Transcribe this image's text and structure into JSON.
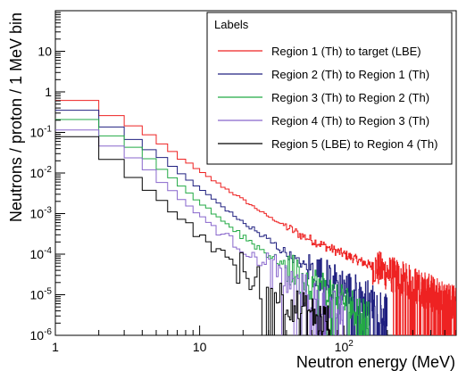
{
  "chart_data": {
    "type": "line",
    "title": "",
    "xlabel": "Neutron energy (MeV)",
    "ylabel": "Neutrons / proton / 1 MeV bin",
    "x_scale": "log",
    "y_scale": "log",
    "xlim": [
      1,
      600
    ],
    "ylim": [
      1e-06,
      100
    ],
    "x_ticks": [
      {
        "value": 1,
        "label": "1"
      },
      {
        "value": 10,
        "label": "10"
      },
      {
        "value": 100,
        "label": "10",
        "sup": "2"
      }
    ],
    "y_ticks": [
      {
        "value": 1e-06,
        "label": "10",
        "sup": "-6"
      },
      {
        "value": 1e-05,
        "label": "10",
        "sup": "-5"
      },
      {
        "value": 0.0001,
        "label": "10",
        "sup": "-4"
      },
      {
        "value": 0.001,
        "label": "10",
        "sup": "-3"
      },
      {
        "value": 0.01,
        "label": "10",
        "sup": "-2"
      },
      {
        "value": 0.1,
        "label": "10",
        "sup": "-1"
      },
      {
        "value": 1,
        "label": "1"
      },
      {
        "value": 10,
        "label": "10"
      }
    ],
    "grid": false,
    "legend_title": "Labels",
    "legend_position": "top-right",
    "series": [
      {
        "name": "Region 1 (Th) to target (LBE)",
        "color": "#ee2222",
        "points": [
          [
            1,
            1.15
          ],
          [
            2,
            0.38
          ],
          [
            3,
            0.2
          ],
          [
            5,
            0.065
          ],
          [
            10,
            0.011
          ],
          [
            20,
            0.0022
          ],
          [
            30,
            0.00085
          ],
          [
            50,
            0.0003
          ],
          [
            80,
            0.00014
          ],
          [
            100,
            0.0001
          ],
          [
            200,
            3.5e-05
          ],
          [
            300,
            1.8e-05
          ],
          [
            400,
            1.1e-05
          ],
          [
            600,
            6e-06
          ]
        ]
      },
      {
        "name": "Region 2 (Th) to Region 1 (Th)",
        "color": "#202080",
        "points": [
          [
            1,
            0.7
          ],
          [
            2,
            0.2
          ],
          [
            3,
            0.1
          ],
          [
            5,
            0.03
          ],
          [
            10,
            0.0042
          ],
          [
            20,
            0.0006
          ],
          [
            30,
            0.00022
          ],
          [
            50,
            6e-05
          ],
          [
            80,
            2.5e-05
          ],
          [
            100,
            1.7e-05
          ],
          [
            150,
            8e-06
          ],
          [
            200,
            4e-06
          ]
        ]
      },
      {
        "name": "Region 3 (Th) to Region 2 (Th)",
        "color": "#22aa44",
        "points": [
          [
            1,
            0.42
          ],
          [
            2,
            0.13
          ],
          [
            3,
            0.06
          ],
          [
            5,
            0.016
          ],
          [
            10,
            0.0019
          ],
          [
            20,
            0.00028
          ],
          [
            30,
            0.0001
          ],
          [
            50,
            2.8e-05
          ],
          [
            80,
            1.2e-05
          ],
          [
            100,
            7e-06
          ],
          [
            150,
            3e-06
          ]
        ]
      },
      {
        "name": "Region 4 (Th) to Region 3 (Th)",
        "color": "#8866cc",
        "points": [
          [
            1,
            0.22
          ],
          [
            2,
            0.075
          ],
          [
            3,
            0.035
          ],
          [
            5,
            0.0085
          ],
          [
            10,
            0.0009
          ],
          [
            20,
            0.00013
          ],
          [
            30,
            4.5e-05
          ],
          [
            50,
            1.4e-05
          ],
          [
            80,
            5.5e-06
          ],
          [
            100,
            3.5e-06
          ]
        ]
      },
      {
        "name": "Region 5 (LBE) to Region 4 (Th)",
        "color": "#000000",
        "points": [
          [
            1,
            0.17
          ],
          [
            2,
            0.045
          ],
          [
            3,
            0.013
          ],
          [
            5,
            0.0028
          ],
          [
            10,
            0.00028
          ],
          [
            20,
            4e-05
          ],
          [
            30,
            1.5e-05
          ],
          [
            50,
            4.5e-06
          ],
          [
            80,
            2.2e-06
          ]
        ]
      }
    ]
  }
}
